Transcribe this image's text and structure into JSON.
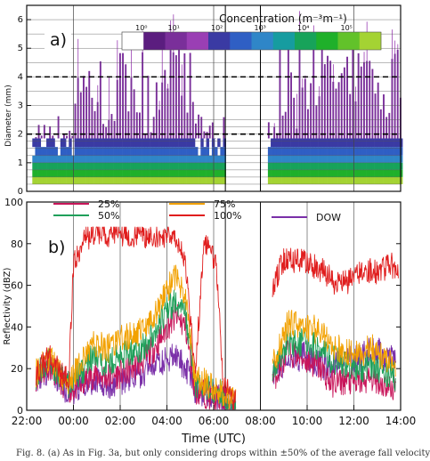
{
  "caption": "Fig. 8. (a) As in Fig. 3a, but only considering drops within ±50% of the average fall velocity",
  "chart_data": [
    {
      "type": "heatmap",
      "panel_label": "a)",
      "ylabel": "Diameter (mm)",
      "ylim": [
        0,
        6.5
      ],
      "yticks": [
        0,
        1,
        2,
        3,
        4,
        5,
        6
      ],
      "colorbar": {
        "title": "Concentration (m⁻³m⁻¹)",
        "tick_labels": [
          "10⁰",
          "10¹",
          "10²",
          "10³",
          "10⁴",
          "10⁵"
        ],
        "colors": [
          "#ffffff",
          "#5b1d7f",
          "#7a2f9a",
          "#9a3fb4",
          "#3a3aa3",
          "#2f5fc4",
          "#2f86c8",
          "#169ca0",
          "#17a35a",
          "#1fb02a",
          "#62c22a",
          "#a4d333"
        ]
      },
      "dashed_lines_mm": [
        4,
        2
      ],
      "time_breaks": [
        "06:30",
        "08:00"
      ],
      "xlim_hours": [
        -2,
        14
      ]
    },
    {
      "type": "line",
      "panel_label": "b)",
      "xlabel": "Time (UTC)",
      "ylabel": "Reflectivity (dBZ)",
      "ylim": [
        0,
        100
      ],
      "yticks": [
        0,
        20,
        40,
        60,
        80,
        100
      ],
      "x_tick_labels": [
        "22:00",
        "00:00",
        "02:00",
        "04:00",
        "06:00",
        "08:00",
        "10:00",
        "12:00",
        "14:00"
      ],
      "x_unit": "hours since 00:00 UTC",
      "xlim": [
        -2,
        14
      ],
      "series": [
        {
          "name": "25%",
          "color": "#c8155a",
          "points": [
            [
              -1.6,
              16
            ],
            [
              -1.0,
              22
            ],
            [
              -0.6,
              15
            ],
            [
              -0.2,
              10
            ],
            [
              0.3,
              12
            ],
            [
              0.8,
              17
            ],
            [
              1.5,
              16
            ],
            [
              2.2,
              18
            ],
            [
              3.0,
              24
            ],
            [
              3.6,
              32
            ],
            [
              4.0,
              40
            ],
            [
              4.4,
              45
            ],
            [
              4.8,
              40
            ],
            [
              5.2,
              10
            ],
            [
              5.8,
              7
            ],
            [
              6.3,
              5
            ],
            [
              6.9,
              2
            ],
            [
              8.6,
              16
            ],
            [
              9.2,
              28
            ],
            [
              10.0,
              24
            ],
            [
              10.6,
              20
            ],
            [
              11.0,
              13
            ],
            [
              11.6,
              14
            ],
            [
              12.2,
              13
            ],
            [
              12.8,
              16
            ],
            [
              13.3,
              12
            ],
            [
              13.8,
              10
            ]
          ]
        },
        {
          "name": "50%",
          "color": "#1fa05a",
          "points": [
            [
              -1.6,
              17
            ],
            [
              -1.0,
              24
            ],
            [
              -0.6,
              16
            ],
            [
              -0.2,
              12
            ],
            [
              0.3,
              18
            ],
            [
              0.8,
              25
            ],
            [
              1.5,
              23
            ],
            [
              2.2,
              27
            ],
            [
              3.0,
              30
            ],
            [
              3.6,
              40
            ],
            [
              4.0,
              48
            ],
            [
              4.4,
              52
            ],
            [
              4.8,
              46
            ],
            [
              5.2,
              13
            ],
            [
              5.8,
              10
            ],
            [
              6.3,
              8
            ],
            [
              6.9,
              3
            ],
            [
              8.6,
              20
            ],
            [
              9.2,
              33
            ],
            [
              10.0,
              32
            ],
            [
              10.6,
              30
            ],
            [
              11.0,
              25
            ],
            [
              11.6,
              22
            ],
            [
              12.2,
              20
            ],
            [
              12.8,
              22
            ],
            [
              13.3,
              18
            ],
            [
              13.8,
              16
            ]
          ]
        },
        {
          "name": "75%",
          "color": "#f2a100",
          "points": [
            [
              -1.6,
              18
            ],
            [
              -1.0,
              26
            ],
            [
              -0.6,
              18
            ],
            [
              -0.2,
              13
            ],
            [
              0.3,
              22
            ],
            [
              0.8,
              32
            ],
            [
              1.5,
              30
            ],
            [
              2.2,
              35
            ],
            [
              3.0,
              38
            ],
            [
              3.6,
              48
            ],
            [
              4.0,
              58
            ],
            [
              4.4,
              64
            ],
            [
              4.8,
              55
            ],
            [
              5.2,
              16
            ],
            [
              5.8,
              12
            ],
            [
              6.3,
              9
            ],
            [
              6.9,
              4
            ],
            [
              8.6,
              24
            ],
            [
              9.2,
              42
            ],
            [
              10.0,
              40
            ],
            [
              10.6,
              38
            ],
            [
              11.0,
              32
            ],
            [
              11.6,
              28
            ],
            [
              12.2,
              27
            ],
            [
              12.8,
              30
            ],
            [
              13.3,
              24
            ],
            [
              13.8,
              22
            ]
          ]
        },
        {
          "name": "100%",
          "color": "#e01e1e",
          "points": [
            [
              -1.6,
              18
            ],
            [
              -1.0,
              26
            ],
            [
              -0.6,
              19
            ],
            [
              -0.2,
              14
            ],
            [
              0.0,
              70
            ],
            [
              0.4,
              82
            ],
            [
              1.0,
              85
            ],
            [
              1.5,
              84
            ],
            [
              2.0,
              85
            ],
            [
              2.5,
              84
            ],
            [
              3.0,
              84
            ],
            [
              3.5,
              83
            ],
            [
              4.0,
              84
            ],
            [
              4.4,
              84
            ],
            [
              4.8,
              70
            ],
            [
              5.2,
              18
            ],
            [
              5.6,
              80
            ],
            [
              6.1,
              72
            ],
            [
              6.4,
              15
            ],
            [
              6.9,
              5
            ],
            [
              8.6,
              62
            ],
            [
              9.0,
              72
            ],
            [
              9.6,
              72
            ],
            [
              10.2,
              70
            ],
            [
              10.8,
              66
            ],
            [
              11.2,
              60
            ],
            [
              11.8,
              62
            ],
            [
              12.4,
              68
            ],
            [
              13.0,
              66
            ],
            [
              13.6,
              70
            ],
            [
              13.9,
              64
            ]
          ]
        },
        {
          "name": "DOW",
          "color": "#7a2fa8",
          "points": [
            [
              -1.6,
              16
            ],
            [
              -1.0,
              20
            ],
            [
              -0.6,
              15
            ],
            [
              -0.2,
              8
            ],
            [
              0.3,
              12
            ],
            [
              0.8,
              14
            ],
            [
              1.5,
              12
            ],
            [
              2.2,
              15
            ],
            [
              3.0,
              18
            ],
            [
              3.6,
              22
            ],
            [
              4.0,
              24
            ],
            [
              4.4,
              27
            ],
            [
              4.8,
              20
            ],
            [
              5.2,
              10
            ],
            [
              5.8,
              8
            ],
            [
              6.3,
              6
            ],
            [
              6.9,
              2
            ],
            [
              8.6,
              18
            ],
            [
              9.2,
              25
            ],
            [
              10.0,
              26
            ],
            [
              10.6,
              22
            ],
            [
              11.0,
              20
            ],
            [
              11.6,
              26
            ],
            [
              12.2,
              24
            ],
            [
              12.8,
              30
            ],
            [
              13.3,
              26
            ],
            [
              13.8,
              24
            ]
          ]
        }
      ],
      "time_breaks": [
        "06:30",
        "08:00"
      ]
    }
  ]
}
